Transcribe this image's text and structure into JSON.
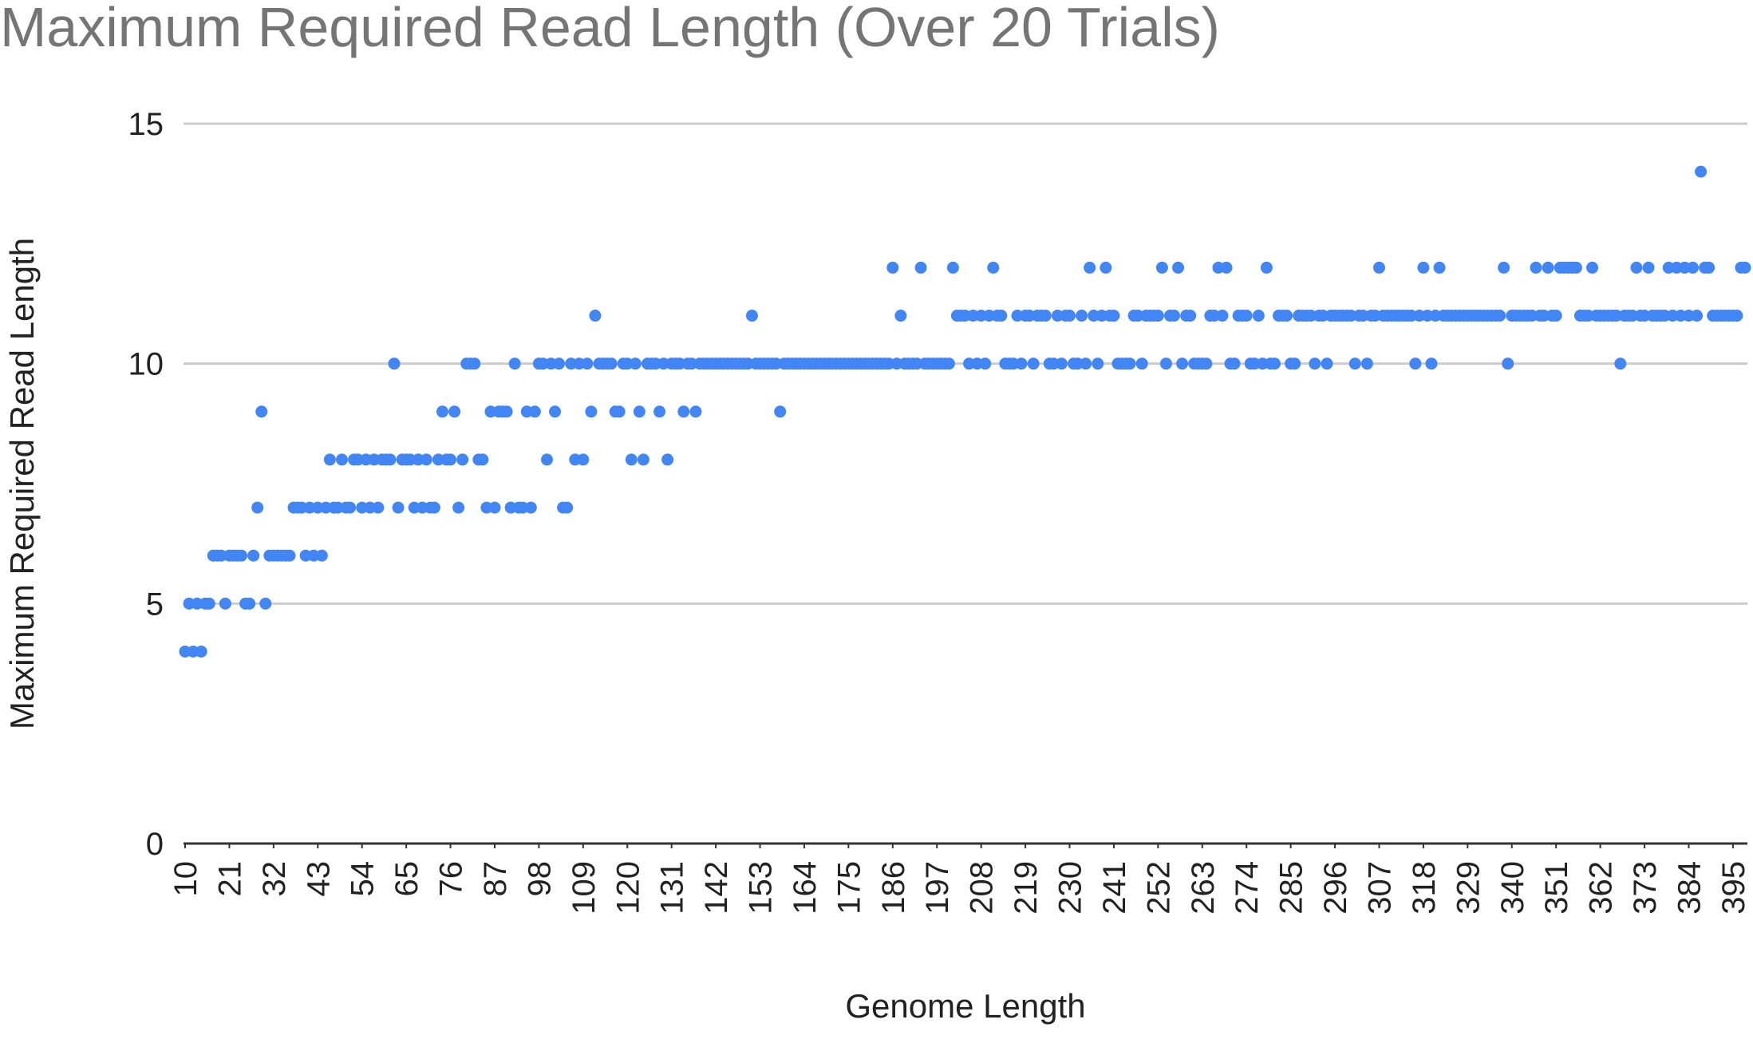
{
  "chart_data": {
    "type": "scatter",
    "title": "Maximum Required Read Length (Over 20 Trials)",
    "x_label": "Genome Length",
    "y_label": "Maximum Required Read Length",
    "color": "#4285f4",
    "grid": true,
    "xlim": [
      10,
      398
    ],
    "ylim": [
      0,
      15
    ],
    "xticks": [
      10,
      21,
      32,
      43,
      54,
      65,
      76,
      87,
      98,
      109,
      120,
      131,
      142,
      153,
      164,
      175,
      186,
      197,
      208,
      219,
      230,
      241,
      252,
      263,
      274,
      285,
      296,
      307,
      318,
      329,
      340,
      351,
      362,
      373,
      384,
      395
    ],
    "yticks": [
      0,
      5,
      10,
      15
    ],
    "x": [
      10,
      11,
      12,
      13,
      14,
      15,
      16,
      17,
      18,
      19,
      20,
      21,
      22,
      23,
      24,
      25,
      26,
      27,
      28,
      29,
      30,
      31,
      32,
      33,
      34,
      35,
      36,
      37,
      38,
      39,
      40,
      41,
      42,
      43,
      44,
      45,
      46,
      47,
      48,
      49,
      50,
      51,
      52,
      53,
      54,
      55,
      56,
      57,
      58,
      59,
      60,
      61,
      62,
      63,
      64,
      65,
      66,
      67,
      68,
      69,
      70,
      71,
      72,
      73,
      74,
      75,
      76,
      77,
      78,
      79,
      80,
      81,
      82,
      83,
      84,
      85,
      86,
      87,
      88,
      89,
      90,
      91,
      92,
      93,
      94,
      95,
      96,
      97,
      98,
      99,
      100,
      101,
      102,
      103,
      104,
      105,
      106,
      107,
      108,
      109,
      110,
      111,
      112,
      113,
      114,
      115,
      116,
      117,
      118,
      119,
      120,
      121,
      122,
      123,
      124,
      125,
      126,
      127,
      128,
      129,
      130,
      131,
      132,
      133,
      134,
      135,
      136,
      137,
      138,
      139,
      140,
      141,
      142,
      143,
      144,
      145,
      146,
      147,
      148,
      149,
      150,
      151,
      152,
      153,
      154,
      155,
      156,
      157,
      158,
      159,
      160,
      161,
      162,
      163,
      164,
      165,
      166,
      167,
      168,
      169,
      170,
      171,
      172,
      173,
      174,
      175,
      176,
      177,
      178,
      179,
      180,
      181,
      182,
      183,
      184,
      185,
      186,
      187,
      188,
      189,
      190,
      191,
      192,
      193,
      194,
      195,
      196,
      197,
      198,
      199,
      200,
      201,
      202,
      203,
      204,
      205,
      206,
      207,
      208,
      209,
      210,
      211,
      212,
      213,
      214,
      215,
      216,
      217,
      218,
      219,
      220,
      221,
      222,
      223,
      224,
      225,
      226,
      227,
      228,
      229,
      230,
      231,
      232,
      233,
      234,
      235,
      236,
      237,
      238,
      239,
      240,
      241,
      242,
      243,
      244,
      245,
      246,
      247,
      248,
      249,
      250,
      251,
      252,
      253,
      254,
      255,
      256,
      257,
      258,
      259,
      260,
      261,
      262,
      263,
      264,
      265,
      266,
      267,
      268,
      269,
      270,
      271,
      272,
      273,
      274,
      275,
      276,
      277,
      278,
      279,
      280,
      281,
      282,
      283,
      284,
      285,
      286,
      287,
      288,
      289,
      290,
      291,
      292,
      293,
      294,
      295,
      296,
      297,
      298,
      299,
      300,
      301,
      302,
      303,
      304,
      305,
      306,
      307,
      308,
      309,
      310,
      311,
      312,
      313,
      314,
      315,
      316,
      317,
      318,
      319,
      320,
      321,
      322,
      323,
      324,
      325,
      326,
      327,
      328,
      329,
      330,
      331,
      332,
      333,
      334,
      335,
      336,
      337,
      338,
      339,
      340,
      341,
      342,
      343,
      344,
      345,
      346,
      347,
      348,
      349,
      350,
      351,
      352,
      353,
      354,
      355,
      356,
      357,
      358,
      359,
      360,
      361,
      362,
      363,
      364,
      365,
      366,
      367,
      368,
      369,
      370,
      371,
      372,
      373,
      374,
      375,
      376,
      377,
      378,
      379,
      380,
      381,
      382,
      383,
      384,
      385,
      386,
      387,
      388,
      389,
      390,
      391,
      392,
      393,
      394,
      395,
      396,
      397,
      398
    ],
    "values": [
      4,
      5,
      4,
      5,
      4,
      5,
      5,
      6,
      6,
      6,
      5,
      6,
      6,
      6,
      6,
      5,
      5,
      6,
      7,
      9,
      5,
      6,
      6,
      6,
      6,
      6,
      6,
      7,
      7,
      7,
      6,
      7,
      6,
      7,
      6,
      7,
      8,
      7,
      7,
      8,
      7,
      7,
      8,
      8,
      7,
      8,
      7,
      8,
      7,
      8,
      8,
      8,
      10,
      7,
      8,
      8,
      8,
      7,
      8,
      7,
      8,
      7,
      7,
      8,
      9,
      8,
      8,
      9,
      7,
      8,
      10,
      10,
      10,
      8,
      8,
      7,
      9,
      7,
      9,
      9,
      9,
      7,
      10,
      7,
      7,
      9,
      7,
      9,
      10,
      10,
      8,
      10,
      9,
      10,
      7,
      7,
      10,
      8,
      10,
      8,
      10,
      9,
      11,
      10,
      10,
      10,
      10,
      9,
      9,
      10,
      10,
      8,
      10,
      9,
      8,
      10,
      10,
      10,
      9,
      10,
      8,
      10,
      10,
      10,
      9,
      10,
      10,
      9,
      10,
      10,
      10,
      10,
      10,
      10,
      10,
      10,
      10,
      10,
      10,
      10,
      10,
      11,
      10,
      10,
      10,
      10,
      10,
      10,
      9,
      10,
      10,
      10,
      10,
      10,
      10,
      10,
      10,
      10,
      10,
      10,
      10,
      10,
      10,
      10,
      10,
      10,
      10,
      10,
      10,
      10,
      10,
      10,
      10,
      10,
      10,
      10,
      12,
      10,
      11,
      10,
      10,
      10,
      10,
      12,
      10,
      10,
      10,
      10,
      10,
      10,
      10,
      12,
      11,
      11,
      11,
      10,
      11,
      10,
      11,
      10,
      11,
      12,
      11,
      11,
      10,
      10,
      10,
      11,
      10,
      11,
      11,
      10,
      11,
      11,
      11,
      10,
      10,
      11,
      10,
      11,
      11,
      10,
      10,
      11,
      10,
      12,
      11,
      10,
      11,
      12,
      11,
      11,
      10,
      10,
      10,
      10,
      11,
      11,
      10,
      11,
      11,
      11,
      11,
      12,
      10,
      11,
      11,
      12,
      10,
      11,
      11,
      10,
      10,
      10,
      10,
      11,
      11,
      12,
      11,
      12,
      10,
      10,
      11,
      11,
      11,
      10,
      10,
      11,
      10,
      12,
      10,
      10,
      11,
      11,
      11,
      10,
      10,
      11,
      11,
      11,
      11,
      10,
      11,
      11,
      10,
      11,
      11,
      11,
      11,
      11,
      11,
      10,
      11,
      11,
      10,
      11,
      11,
      12,
      11,
      11,
      11,
      11,
      11,
      11,
      11,
      11,
      10,
      11,
      12,
      11,
      10,
      11,
      12,
      11,
      11,
      11,
      11,
      11,
      11,
      11,
      11,
      11,
      11,
      11,
      11,
      11,
      11,
      11,
      12,
      10,
      11,
      11,
      11,
      11,
      11,
      11,
      12,
      11,
      11,
      12,
      11,
      11,
      12,
      12,
      12,
      12,
      12,
      11,
      11,
      11,
      12,
      11,
      11,
      11,
      11,
      11,
      11,
      10,
      11,
      11,
      11,
      12,
      11,
      11,
      12,
      11,
      11,
      11,
      11,
      12,
      11,
      12,
      11,
      12,
      11,
      12,
      11,
      14,
      12,
      12,
      11,
      11,
      11,
      11,
      11,
      11,
      11,
      12,
      12
    ]
  }
}
